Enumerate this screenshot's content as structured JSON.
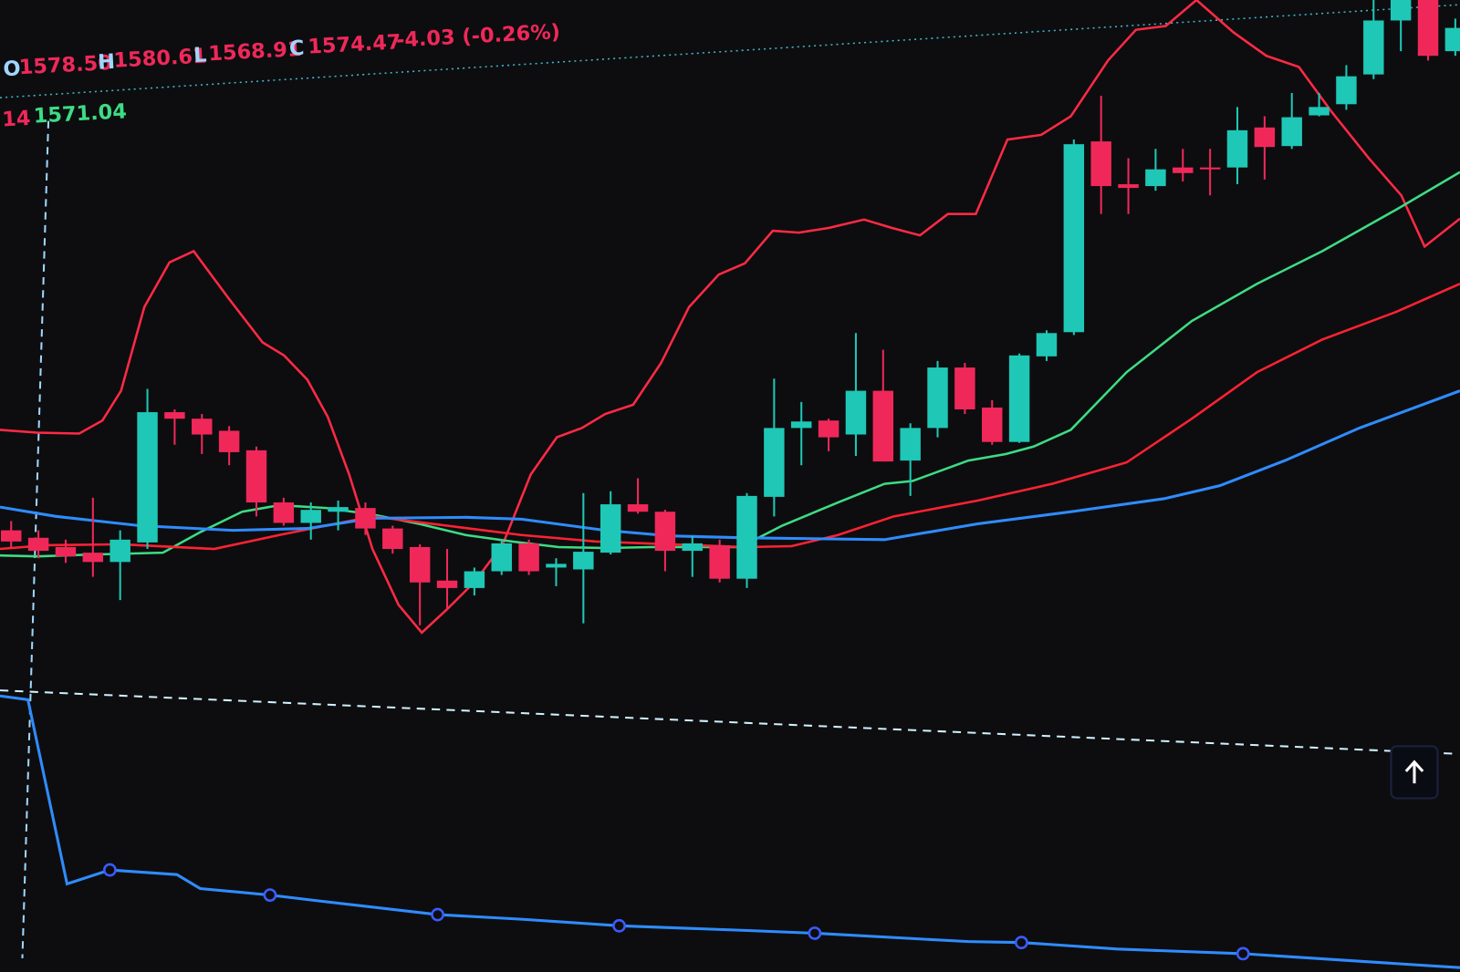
{
  "header": {
    "open_label": "O",
    "open": "1578.50",
    "high_label": "H",
    "high": "1580.61",
    "low_label": "L",
    "low": "1568.91",
    "close_label": "C",
    "close": "1574.47",
    "change": "-4.03 (-0.26%)"
  },
  "crosshair": {
    "period": "14",
    "price": "1571.04"
  },
  "chart_data": {
    "type": "candlestick",
    "up_color": "#1fc7b6",
    "down_color": "#f0285a",
    "ylim": [
      1540,
      1576
    ],
    "open": [
      1547.5,
      1547.1,
      1546.6,
      1546.3,
      1545.8,
      1546.85,
      1553.85,
      1553.5,
      1552.85,
      1551.8,
      1549,
      1547.9,
      1548.5,
      1548.7,
      1547.6,
      1546.6,
      1544.8,
      1544.4,
      1545.3,
      1546.8,
      1545.5,
      1545.4,
      1546.3,
      1548.9,
      1548.5,
      1546.4,
      1546.7,
      1544.9,
      1549.3,
      1553,
      1553.4,
      1552.65,
      1555,
      1551.25,
      1553,
      1556.25,
      1554.1,
      1552.25,
      1556.85,
      1558.15,
      1568.4,
      1566.1,
      1566,
      1567,
      1567,
      1567,
      1569.15,
      1568.15,
      1569.8,
      1570.4,
      1572,
      1574.9,
      1576,
      1573.25
    ],
    "high": [
      1548,
      1547.5,
      1547,
      1549.25,
      1547.5,
      1555.1,
      1554,
      1553.75,
      1553.1,
      1552,
      1549.25,
      1549,
      1549.1,
      1549,
      1547.75,
      1546.75,
      1546.5,
      1545.5,
      1547,
      1547,
      1546,
      1549.5,
      1549.6,
      1550.3,
      1548.6,
      1547.2,
      1547,
      1549.5,
      1555.65,
      1554.4,
      1553.5,
      1558.1,
      1557.2,
      1553.25,
      1556.6,
      1556.5,
      1554.5,
      1557,
      1558.25,
      1568.5,
      1570.85,
      1567.5,
      1568,
      1568,
      1568,
      1570.25,
      1569.75,
      1571,
      1571,
      1572.5,
      1576,
      1576,
      1576,
      1575
    ],
    "low": [
      1546.5,
      1546,
      1545.75,
      1545,
      1543.75,
      1546.5,
      1552.1,
      1551.6,
      1551,
      1548.25,
      1547.75,
      1547,
      1547.5,
      1547.25,
      1546.25,
      1542.4,
      1543.25,
      1544,
      1545.1,
      1545.1,
      1544.5,
      1542.5,
      1546.2,
      1548.4,
      1545.3,
      1545,
      1544.7,
      1544.4,
      1548.25,
      1551,
      1551.75,
      1551.5,
      1551.2,
      1549.35,
      1552.5,
      1553.75,
      1552.1,
      1552.2,
      1556.6,
      1558,
      1564.5,
      1564.5,
      1565.75,
      1566.25,
      1565.5,
      1566.1,
      1566.35,
      1568,
      1569.75,
      1570.1,
      1571.75,
      1573.25,
      1572.75,
      1573
    ],
    "close": [
      1546.9,
      1546.4,
      1546.1,
      1545.8,
      1547,
      1553.85,
      1553.5,
      1552.65,
      1551.7,
      1549,
      1547.9,
      1548.6,
      1548.75,
      1547.6,
      1546.5,
      1544.7,
      1544.4,
      1545.3,
      1546.8,
      1545.3,
      1545.7,
      1546.35,
      1548.9,
      1548.5,
      1546.4,
      1546.8,
      1544.9,
      1549.35,
      1553,
      1553.35,
      1552.5,
      1555,
      1551.2,
      1553,
      1556.25,
      1554,
      1552.25,
      1556.9,
      1558.1,
      1568.25,
      1566,
      1565.9,
      1566.9,
      1566.7,
      1566.9,
      1569,
      1568.1,
      1569.7,
      1570.25,
      1571.9,
      1574.9,
      1576,
      1573,
      1574.5
    ]
  }
}
